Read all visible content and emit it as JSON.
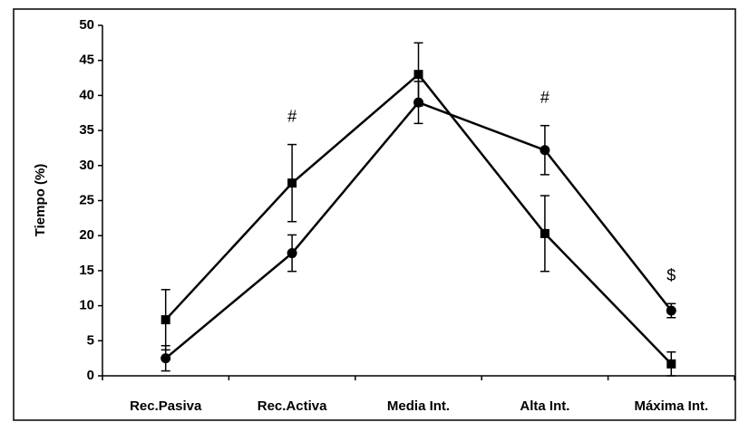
{
  "chart_data": {
    "type": "line",
    "ylabel": "Tiempo (%)",
    "categories": [
      "Rec.Pasiva",
      "Rec.Activa",
      "Media Int.",
      "Alta Int.",
      "Máxima Int."
    ],
    "series": [
      {
        "color": "#000000",
        "marker": "square",
        "values": [
          8,
          27.5,
          43,
          20.3,
          1.7
        ],
        "errors": [
          4.3,
          5.5,
          4.5,
          5.4,
          1.7
        ]
      },
      {
        "color": "#000000",
        "marker": "circle",
        "values": [
          2.5,
          17.5,
          39,
          32.2,
          9.3
        ],
        "errors": [
          1.8,
          2.6,
          3,
          3.5,
          1
        ]
      }
    ],
    "annotations": [
      {
        "text": "#",
        "category": "Rec.Activa"
      },
      {
        "text": "#",
        "category": "Alta Int."
      },
      {
        "text": "$",
        "category": "Máxima Int."
      }
    ],
    "ylim": [
      0,
      50
    ],
    "yticks": [
      0,
      5,
      10,
      15,
      20,
      25,
      30,
      35,
      40,
      45,
      50
    ],
    "grid": false
  }
}
